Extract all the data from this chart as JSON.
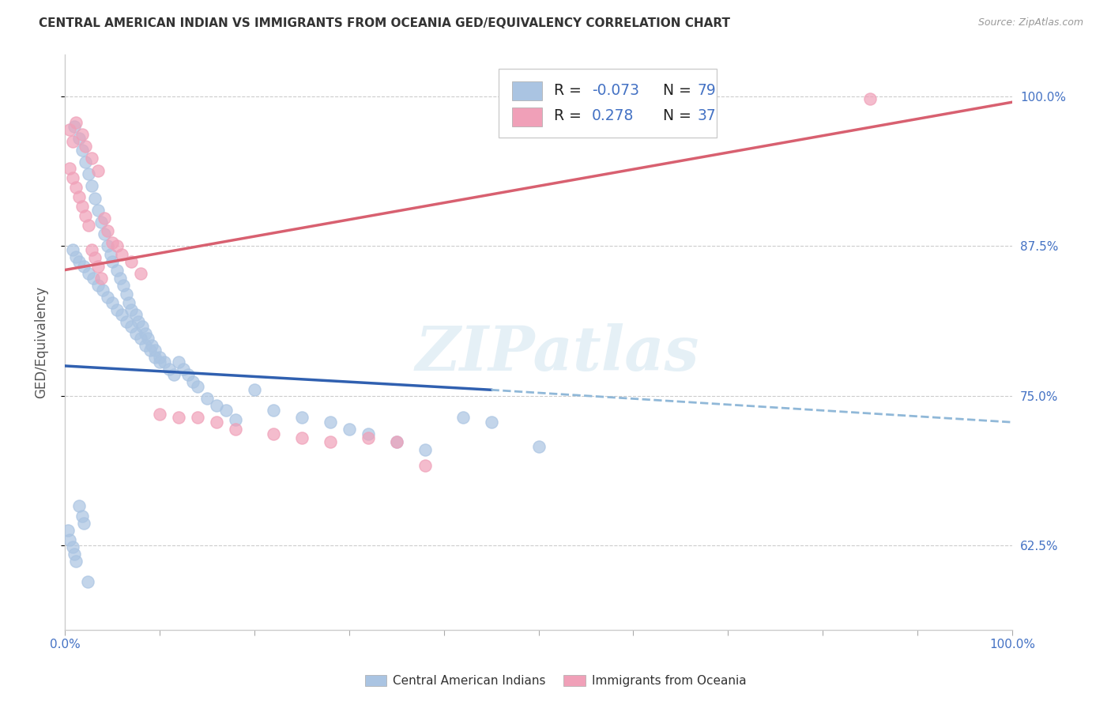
{
  "title": "CENTRAL AMERICAN INDIAN VS IMMIGRANTS FROM OCEANIA GED/EQUIVALENCY CORRELATION CHART",
  "source": "Source: ZipAtlas.com",
  "ylabel": "GED/Equivalency",
  "xlim": [
    0.0,
    1.0
  ],
  "ylim": [
    0.555,
    1.035
  ],
  "x_ticks": [
    0.0,
    0.1,
    0.2,
    0.3,
    0.4,
    0.5,
    0.6,
    0.7,
    0.8,
    0.9,
    1.0
  ],
  "x_tick_labels": [
    "0.0%",
    "",
    "",
    "",
    "",
    "",
    "",
    "",
    "",
    "",
    "100.0%"
  ],
  "y_tick_labels": [
    "62.5%",
    "75.0%",
    "87.5%",
    "100.0%"
  ],
  "y_ticks": [
    0.625,
    0.75,
    0.875,
    1.0
  ],
  "color_blue": "#aac4e2",
  "color_pink": "#f0a0b8",
  "line_blue": "#3060b0",
  "line_pink": "#d86070",
  "line_dashed_blue": "#90b8d8",
  "watermark": "ZIPatlas",
  "blue_scatter_x": [
    0.01,
    0.015,
    0.018,
    0.022,
    0.025,
    0.028,
    0.032,
    0.035,
    0.038,
    0.042,
    0.045,
    0.048,
    0.05,
    0.055,
    0.058,
    0.062,
    0.065,
    0.068,
    0.07,
    0.075,
    0.078,
    0.082,
    0.085,
    0.088,
    0.092,
    0.095,
    0.1,
    0.105,
    0.11,
    0.115,
    0.12,
    0.125,
    0.13,
    0.135,
    0.14,
    0.15,
    0.16,
    0.17,
    0.18,
    0.2,
    0.22,
    0.25,
    0.28,
    0.3,
    0.32,
    0.35,
    0.38,
    0.42,
    0.45,
    0.5,
    0.008,
    0.012,
    0.015,
    0.02,
    0.025,
    0.03,
    0.035,
    0.04,
    0.045,
    0.05,
    0.055,
    0.06,
    0.065,
    0.07,
    0.075,
    0.08,
    0.085,
    0.09,
    0.095,
    0.1,
    0.003,
    0.005,
    0.008,
    0.01,
    0.012,
    0.015,
    0.018,
    0.02,
    0.024
  ],
  "blue_scatter_y": [
    0.975,
    0.965,
    0.955,
    0.945,
    0.935,
    0.925,
    0.915,
    0.905,
    0.895,
    0.885,
    0.875,
    0.868,
    0.862,
    0.855,
    0.848,
    0.842,
    0.835,
    0.828,
    0.822,
    0.818,
    0.812,
    0.808,
    0.802,
    0.798,
    0.792,
    0.788,
    0.782,
    0.778,
    0.772,
    0.768,
    0.778,
    0.772,
    0.768,
    0.762,
    0.758,
    0.748,
    0.742,
    0.738,
    0.73,
    0.755,
    0.738,
    0.732,
    0.728,
    0.722,
    0.718,
    0.712,
    0.705,
    0.732,
    0.728,
    0.708,
    0.872,
    0.866,
    0.862,
    0.858,
    0.852,
    0.848,
    0.842,
    0.838,
    0.832,
    0.828,
    0.822,
    0.818,
    0.812,
    0.808,
    0.802,
    0.798,
    0.792,
    0.788,
    0.782,
    0.778,
    0.638,
    0.63,
    0.624,
    0.618,
    0.612,
    0.658,
    0.65,
    0.644,
    0.595
  ],
  "pink_scatter_x": [
    0.005,
    0.008,
    0.012,
    0.015,
    0.018,
    0.022,
    0.025,
    0.028,
    0.032,
    0.035,
    0.038,
    0.042,
    0.045,
    0.05,
    0.055,
    0.06,
    0.07,
    0.08,
    0.1,
    0.12,
    0.14,
    0.16,
    0.18,
    0.22,
    0.25,
    0.28,
    0.32,
    0.35,
    0.38,
    0.85,
    0.005,
    0.008,
    0.012,
    0.018,
    0.022,
    0.028,
    0.035
  ],
  "pink_scatter_y": [
    0.94,
    0.932,
    0.924,
    0.916,
    0.908,
    0.9,
    0.892,
    0.872,
    0.865,
    0.858,
    0.848,
    0.898,
    0.888,
    0.878,
    0.875,
    0.868,
    0.862,
    0.852,
    0.735,
    0.732,
    0.732,
    0.728,
    0.722,
    0.718,
    0.715,
    0.712,
    0.715,
    0.712,
    0.692,
    0.998,
    0.972,
    0.962,
    0.978,
    0.968,
    0.958,
    0.948,
    0.938
  ],
  "trend_blue_x0": 0.0,
  "trend_blue_y0": 0.775,
  "trend_blue_x1": 0.45,
  "trend_blue_y1": 0.755,
  "trend_dashed_x0": 0.45,
  "trend_dashed_y0": 0.755,
  "trend_dashed_x1": 1.0,
  "trend_dashed_y1": 0.728,
  "trend_pink_x0": 0.0,
  "trend_pink_y0": 0.855,
  "trend_pink_x1": 1.0,
  "trend_pink_y1": 0.995,
  "legend_blue_label_r": "R = -0.073",
  "legend_blue_label_n": "N = 79",
  "legend_pink_label_r": "R =  0.278",
  "legend_pink_label_n": "N = 37"
}
